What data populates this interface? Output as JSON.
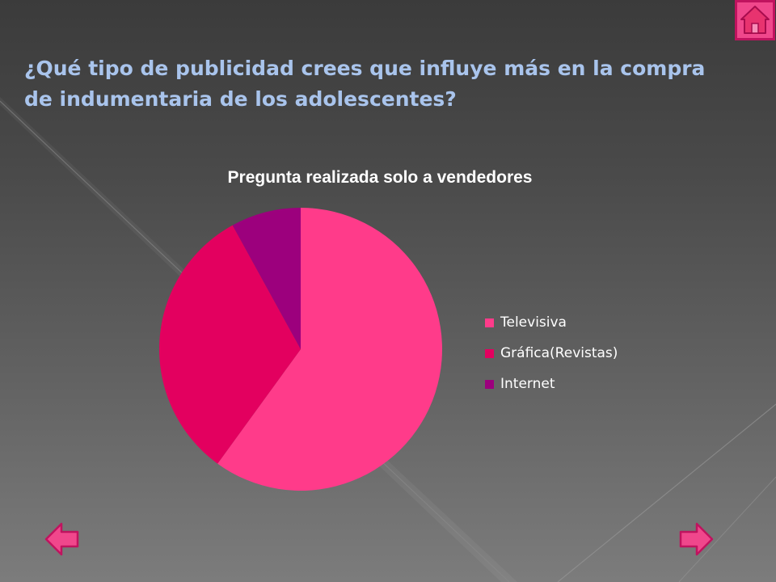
{
  "slide": {
    "title": "¿Qué tipo de publicidad crees que influye más en la compra de indumentaria de los adolescentes?"
  },
  "icons": {
    "home": "home-icon",
    "prev": "arrow-left-icon",
    "next": "arrow-right-icon"
  },
  "colors": {
    "title_text": "#a9c4ec",
    "button_fill": "#f0478c",
    "button_stroke": "#c0135f"
  },
  "chart_data": {
    "type": "pie",
    "title": "Pregunta realizada solo a vendedores",
    "legend_position": "right",
    "categories": [
      "Televisiva",
      "Gráfica(Revistas)",
      "Internet"
    ],
    "values": [
      60,
      32,
      8
    ],
    "colors": [
      "#ff3b8a",
      "#e3005f",
      "#9c007d"
    ]
  }
}
